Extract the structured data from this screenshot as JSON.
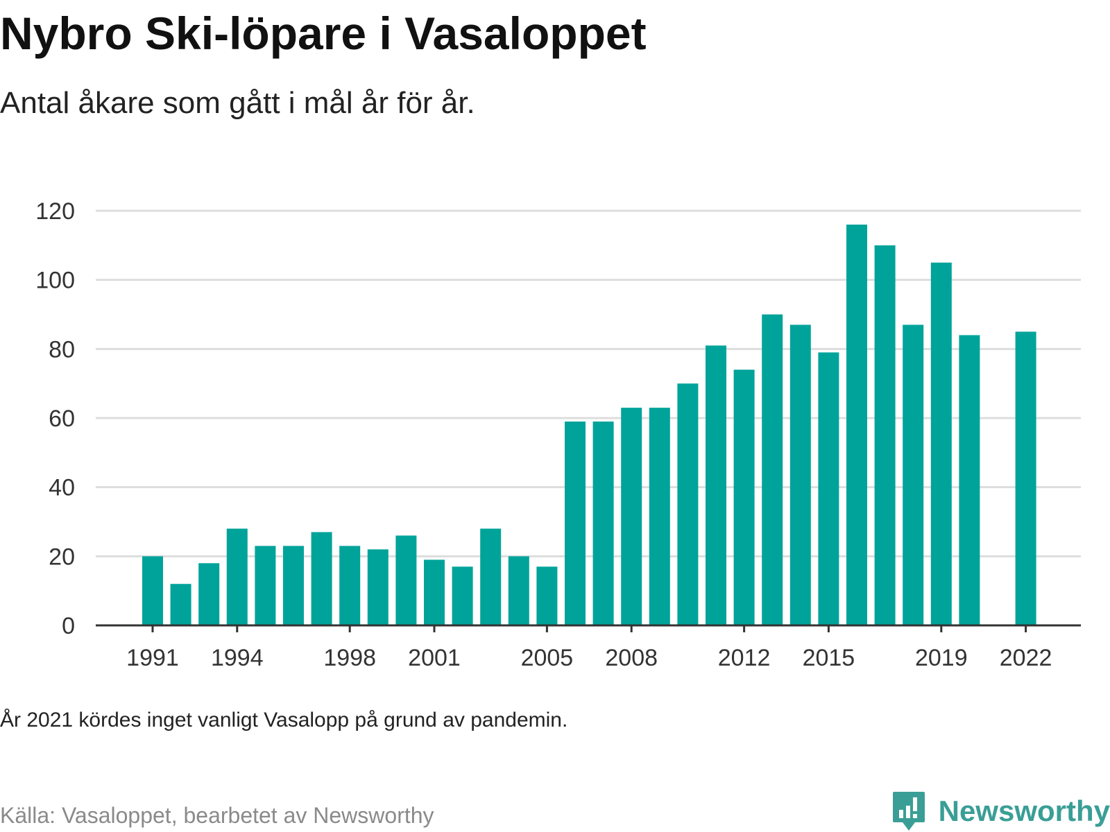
{
  "title": "Nybro Ski-löpare i Vasaloppet",
  "subtitle": "Antal åkare som gått i mål år för år.",
  "note": "År 2021 kördes inget vanligt Vasalopp på grund av pandemin.",
  "source": "Källa: Vasaloppet, bearbetet av Newsworthy",
  "brand": {
    "name": "Newsworthy",
    "icon": "bar-chart-exclamation-icon",
    "color": "#3a9e96"
  },
  "colors": {
    "bar": "#00a39a",
    "grid": "#dddddd",
    "axis": "#333333",
    "text": "#333333"
  },
  "chart_data": {
    "type": "bar",
    "title": "Nybro Ski-löpare i Vasaloppet",
    "subtitle": "Antal åkare som gått i mål år för år.",
    "xlabel": "",
    "ylabel": "",
    "ylim": [
      0,
      120
    ],
    "yticks": [
      0,
      20,
      40,
      60,
      80,
      100,
      120
    ],
    "xtick_labels": [
      "1991",
      "1994",
      "1998",
      "2001",
      "2005",
      "2008",
      "2012",
      "2015",
      "2019",
      "2022"
    ],
    "grid": true,
    "categories": [
      "1991",
      "1992",
      "1993",
      "1994",
      "1995",
      "1996",
      "1997",
      "1998",
      "1999",
      "2000",
      "2001",
      "2002",
      "2003",
      "2004",
      "2005",
      "2006",
      "2007",
      "2008",
      "2009",
      "2010",
      "2011",
      "2012",
      "2013",
      "2014",
      "2015",
      "2016",
      "2017",
      "2018",
      "2019",
      "2020",
      "2021",
      "2022"
    ],
    "values": [
      20,
      12,
      18,
      28,
      23,
      23,
      27,
      23,
      22,
      26,
      19,
      17,
      28,
      20,
      17,
      59,
      59,
      63,
      63,
      70,
      81,
      74,
      90,
      87,
      79,
      116,
      110,
      87,
      105,
      84,
      null,
      85
    ]
  }
}
